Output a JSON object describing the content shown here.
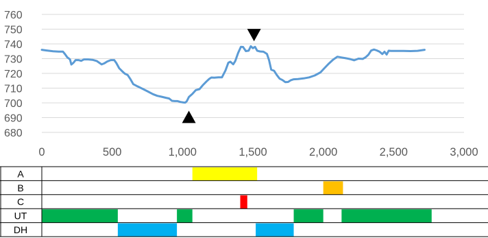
{
  "chart_data": [
    {
      "type": "line",
      "title": "",
      "xlabel": "",
      "ylabel": "",
      "xlim": [
        0,
        3000
      ],
      "ylim": [
        680,
        760
      ],
      "x_ticks": [
        0,
        500,
        1000,
        1500,
        2000,
        2500,
        3000
      ],
      "x_tick_labels": [
        "0",
        "500",
        "1,000",
        "1,500",
        "2,000",
        "2,500",
        "3,000"
      ],
      "y_ticks": [
        680,
        690,
        700,
        710,
        720,
        730,
        740,
        750,
        760
      ],
      "y_tick_labels": [
        "680",
        "690",
        "700",
        "710",
        "720",
        "730",
        "740",
        "750",
        "760"
      ],
      "grid": "horizontal",
      "legend": "none",
      "line_color": "#5b9bd5",
      "series": [
        {
          "values_xy": [
            [
              0,
              736
            ],
            [
              30,
              735.6
            ],
            [
              80,
              735
            ],
            [
              120,
              734.8
            ],
            [
              150,
              734.8
            ],
            [
              165,
              733
            ],
            [
              180,
              731
            ],
            [
              200,
              729.5
            ],
            [
              210,
              726
            ],
            [
              225,
              727.2
            ],
            [
              240,
              729
            ],
            [
              260,
              729
            ],
            [
              280,
              728.5
            ],
            [
              300,
              729.5
            ],
            [
              330,
              729.5
            ],
            [
              360,
              729.2
            ],
            [
              390,
              728.4
            ],
            [
              410,
              727.1
            ],
            [
              425,
              726.1
            ],
            [
              445,
              726.9
            ],
            [
              465,
              728.1
            ],
            [
              490,
              729
            ],
            [
              515,
              729
            ],
            [
              530,
              727
            ],
            [
              550,
              723.5
            ],
            [
              570,
              721.6
            ],
            [
              590,
              719.8
            ],
            [
              610,
              718.9
            ],
            [
              630,
              716
            ],
            [
              650,
              712.7
            ],
            [
              680,
              711.2
            ],
            [
              710,
              709.8
            ],
            [
              750,
              707.9
            ],
            [
              790,
              705.9
            ],
            [
              820,
              704.8
            ],
            [
              850,
              704.2
            ],
            [
              880,
              703.5
            ],
            [
              905,
              703
            ],
            [
              925,
              701.4
            ],
            [
              945,
              701.2
            ],
            [
              965,
              701.2
            ],
            [
              985,
              700.6
            ],
            [
              1005,
              700.3
            ],
            [
              1020,
              700.2
            ],
            [
              1030,
              701.1
            ],
            [
              1045,
              704
            ],
            [
              1070,
              706.1
            ],
            [
              1095,
              708.7
            ],
            [
              1120,
              709.3
            ],
            [
              1145,
              712.1
            ],
            [
              1170,
              714.5
            ],
            [
              1190,
              716.3
            ],
            [
              1205,
              717.2
            ],
            [
              1225,
              717.1
            ],
            [
              1255,
              717.3
            ],
            [
              1280,
              717.3
            ],
            [
              1305,
              722
            ],
            [
              1325,
              727.2
            ],
            [
              1340,
              727.9
            ],
            [
              1360,
              726.2
            ],
            [
              1375,
              728.4
            ],
            [
              1395,
              733.8
            ],
            [
              1415,
              738
            ],
            [
              1430,
              737.9
            ],
            [
              1450,
              735.1
            ],
            [
              1470,
              735.4
            ],
            [
              1485,
              738.4
            ],
            [
              1500,
              737.1
            ],
            [
              1515,
              738
            ],
            [
              1530,
              735.4
            ],
            [
              1550,
              734.9
            ],
            [
              1575,
              734.7
            ],
            [
              1600,
              733.2
            ],
            [
              1615,
              728.9
            ],
            [
              1630,
              722.5
            ],
            [
              1650,
              721.8
            ],
            [
              1670,
              718.9
            ],
            [
              1690,
              716.4
            ],
            [
              1710,
              715.5
            ],
            [
              1730,
              714.1
            ],
            [
              1750,
              714.2
            ],
            [
              1770,
              715.4
            ],
            [
              1790,
              716
            ],
            [
              1820,
              716.2
            ],
            [
              1860,
              716.6
            ],
            [
              1900,
              717.3
            ],
            [
              1940,
              718.6
            ],
            [
              1980,
              720.7
            ],
            [
              2010,
              723.7
            ],
            [
              2040,
              726.7
            ],
            [
              2070,
              729.3
            ],
            [
              2100,
              731.3
            ],
            [
              2130,
              730.8
            ],
            [
              2160,
              730.3
            ],
            [
              2190,
              729.7
            ],
            [
              2220,
              728.9
            ],
            [
              2250,
              730
            ],
            [
              2280,
              729.8
            ],
            [
              2300,
              730.9
            ],
            [
              2320,
              732.6
            ],
            [
              2340,
              735.5
            ],
            [
              2360,
              736.2
            ],
            [
              2380,
              735.6
            ],
            [
              2400,
              734.7
            ],
            [
              2420,
              733.1
            ],
            [
              2435,
              734.7
            ],
            [
              2450,
              732.8
            ],
            [
              2465,
              735.4
            ],
            [
              2480,
              735.2
            ],
            [
              2520,
              735.2
            ],
            [
              2570,
              735.2
            ],
            [
              2620,
              735.1
            ],
            [
              2670,
              735.3
            ],
            [
              2720,
              736
            ]
          ]
        }
      ],
      "annotations": [
        {
          "marker": "triangle-up",
          "x": 1045,
          "y": 690.5
        },
        {
          "marker": "triangle-down",
          "x": 1508,
          "y": 746
        }
      ]
    },
    {
      "type": "table",
      "title": "",
      "xlim": [
        0,
        3000
      ],
      "tracks": [
        {
          "label": "A",
          "segments": [
            {
              "start": 1070,
              "end": 1530,
              "color": "#ffff00"
            }
          ]
        },
        {
          "label": "B",
          "segments": [
            {
              "start": 2000,
              "end": 2140,
              "color": "#ffc000"
            }
          ]
        },
        {
          "label": "C",
          "segments": [
            {
              "start": 1410,
              "end": 1460,
              "color": "#ff0000"
            }
          ]
        },
        {
          "label": "UT",
          "segments": [
            {
              "start": 0,
              "end": 540,
              "color": "#00b050"
            },
            {
              "start": 960,
              "end": 1070,
              "color": "#00b050"
            },
            {
              "start": 1790,
              "end": 2000,
              "color": "#00b050"
            },
            {
              "start": 2130,
              "end": 2770,
              "color": "#00b050"
            }
          ]
        },
        {
          "label": "DH",
          "segments": [
            {
              "start": 540,
              "end": 960,
              "color": "#00b0f0"
            },
            {
              "start": 1520,
              "end": 1790,
              "color": "#00b0f0"
            }
          ]
        }
      ]
    }
  ]
}
